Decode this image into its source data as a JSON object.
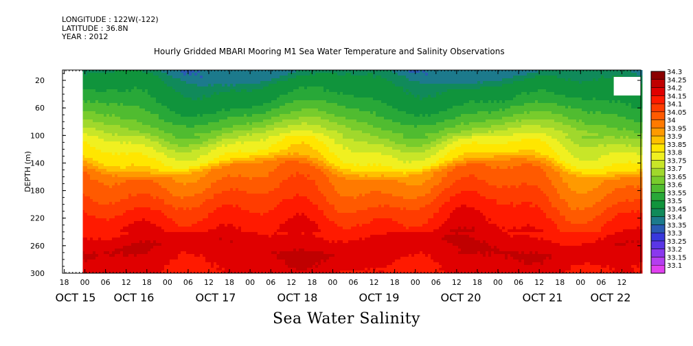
{
  "meta": {
    "longitude": "LONGITUDE : 122W(-122)",
    "latitude": "LATITUDE : 36.8N",
    "year": "YEAR : 2012"
  },
  "chart_data": {
    "type": "heatmap",
    "title": "Hourly Gridded MBARI Mooring M1 Sea Water Temperature and Salinity Observations",
    "xlabel": "Sea Water Salinity",
    "ylabel": "DEPTH (m)",
    "ylim": [
      300,
      5
    ],
    "y_ticks": [
      20,
      60,
      100,
      140,
      180,
      220,
      260,
      300
    ],
    "x_start_hour": 0,
    "x_hours_total": 171,
    "x_hour_ticks": [
      "18",
      "00",
      "06",
      "12",
      "18",
      "00",
      "06",
      "12",
      "18",
      "00",
      "06",
      "12",
      "18",
      "00",
      "06",
      "12",
      "18",
      "00",
      "06",
      "12",
      "18",
      "00",
      "06",
      "12",
      "18",
      "00",
      "06",
      "12"
    ],
    "x_day_labels": [
      "OCT 15",
      "OCT 16",
      "OCT 17",
      "OCT 18",
      "OCT 19",
      "OCT 20",
      "OCT 21",
      "OCT 22"
    ],
    "colorbar_levels": [
      "34.3",
      "34.25",
      "34.2",
      "34.15",
      "34.1",
      "34.05",
      "34",
      "33.95",
      "33.9",
      "33.85",
      "33.8",
      "33.75",
      "33.7",
      "33.65",
      "33.6",
      "33.55",
      "33.5",
      "33.45",
      "33.4",
      "33.35",
      "33.3",
      "33.25",
      "33.2",
      "33.15",
      "33.1"
    ],
    "colorbar_colors": [
      "#8b0000",
      "#c00000",
      "#e00000",
      "#ff1a00",
      "#ff3c00",
      "#ff5a00",
      "#ff7a00",
      "#ff9a00",
      "#ffc000",
      "#ffe600",
      "#f0f020",
      "#c8e628",
      "#a0d82c",
      "#78cc2c",
      "#50bc30",
      "#28a838",
      "#10943c",
      "#108a5a",
      "#1c7a8c",
      "#2a5ab4",
      "#3838dc",
      "#5a36e6",
      "#8a38ee",
      "#b43ef0",
      "#e040f0"
    ],
    "profile": [
      {
        "depth": 5,
        "salinity": 33.42
      },
      {
        "depth": 20,
        "salinity": 33.5
      },
      {
        "depth": 50,
        "salinity": 33.55
      },
      {
        "depth": 80,
        "salinity": 33.65
      },
      {
        "depth": 110,
        "salinity": 33.8
      },
      {
        "depth": 135,
        "salinity": 33.88
      },
      {
        "depth": 150,
        "salinity": 34.02
      },
      {
        "depth": 180,
        "salinity": 34.08
      },
      {
        "depth": 210,
        "salinity": 34.15
      },
      {
        "depth": 240,
        "salinity": 34.2
      },
      {
        "depth": 260,
        "salinity": 34.25
      },
      {
        "depth": 300,
        "salinity": 34.2
      }
    ],
    "missing": [
      {
        "x_from": 0,
        "x_to": 6,
        "depth_from": 5,
        "depth_to": 300
      },
      {
        "x_from": 163,
        "x_to": 171,
        "depth_from": 15,
        "depth_to": 42
      }
    ]
  }
}
